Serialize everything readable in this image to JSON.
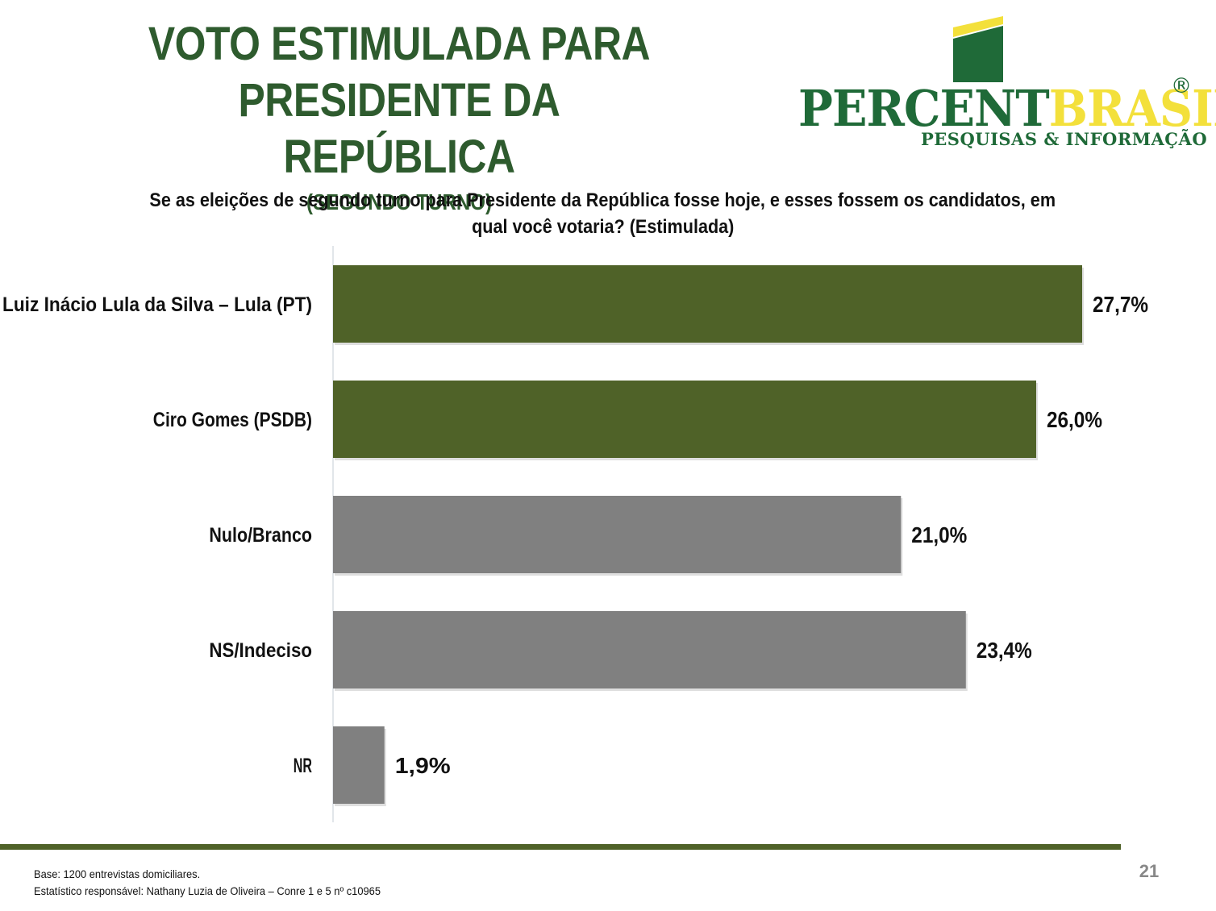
{
  "header": {
    "title_line1": "VOTO ESTIMULADA PARA",
    "title_line2": "PRESIDENTE DA REPÚBLICA",
    "subtitle": "(SEGUNDO TURNO)"
  },
  "logo": {
    "word_part1": "PERCENT",
    "word_part2": "BRASIL",
    "registered": "®",
    "tagline": "PESQUISAS & INFORMAÇÃO",
    "colors": {
      "green": "#1f6a38",
      "yellow": "#f3e03b"
    }
  },
  "question": {
    "line1": "Se as eleições de segundo turno para Presidente da República fosse hoje, e esses fossem os candidatos, em",
    "line2": "qual você votaria? (Estimulada)"
  },
  "chart_data": {
    "type": "bar",
    "orientation": "horizontal",
    "categories": [
      "Luiz Inácio Lula da Silva – Lula (PT)",
      "Ciro Gomes (PSDB)",
      "Nulo/Branco",
      "NS/Indeciso",
      "NR"
    ],
    "values": [
      27.7,
      26.0,
      21.0,
      23.4,
      1.9
    ],
    "value_labels": [
      "27,7%",
      "26,0%",
      "21,0%",
      "23,4%",
      "1,9%"
    ],
    "bar_colors": [
      "#4f6228",
      "#4f6228",
      "#808080",
      "#808080",
      "#808080"
    ],
    "xlim": [
      0,
      28
    ],
    "grid": false,
    "legend": "none"
  },
  "footer": {
    "note_line1": "Base: 1200 entrevistas domiciliares.",
    "note_line2": "Estatístico responsável: Nathany Luzia de Oliveira – Conre 1 e 5 nº c10965",
    "page_number": "21"
  }
}
